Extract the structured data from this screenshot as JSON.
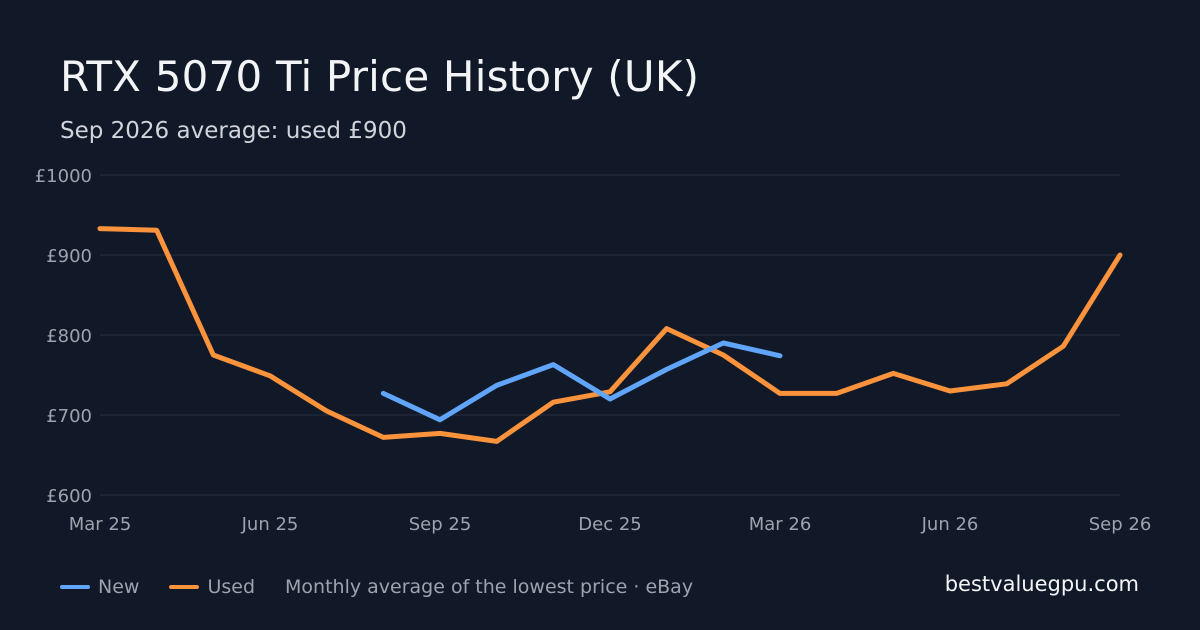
{
  "title": "RTX 5070 Ti Price History (UK)",
  "subtitle": "Sep 2026 average: used £900",
  "colors": {
    "background": "#111827",
    "grid": "#1f2937",
    "new": "#60a5fa",
    "used": "#fb923c"
  },
  "legend": {
    "new_label": "New",
    "used_label": "Used"
  },
  "footer_note": "Monthly average of the lowest price · eBay",
  "site": "bestvaluegpu.com",
  "chart_data": {
    "type": "line",
    "x": [
      "2025-03",
      "2025-04",
      "2025-05",
      "2025-06",
      "2025-07",
      "2025-08",
      "2025-09",
      "2025-10",
      "2025-11",
      "2025-12",
      "2026-01",
      "2026-02",
      "2026-03",
      "2026-04",
      "2026-05",
      "2026-06",
      "2026-07",
      "2026-08",
      "2026-09"
    ],
    "x_tick_labels": [
      "Mar 25",
      "Jun 25",
      "Sep 25",
      "Dec 25",
      "Mar 26",
      "Jun 26",
      "Sep 26"
    ],
    "y_tick_labels": [
      "£600",
      "£700",
      "£800",
      "£900",
      "£1000"
    ],
    "ylim": [
      600,
      1000
    ],
    "grid": true,
    "legend_position": "bottom-left",
    "series": [
      {
        "name": "New",
        "color": "#60a5fa",
        "values": [
          null,
          null,
          null,
          null,
          null,
          727,
          694,
          737,
          763,
          720,
          757,
          790,
          774,
          null,
          null,
          null,
          null,
          null,
          null
        ]
      },
      {
        "name": "Used",
        "color": "#fb923c",
        "values": [
          933,
          931,
          775,
          749,
          705,
          672,
          677,
          667,
          716,
          729,
          808,
          775,
          727,
          727,
          752,
          730,
          739,
          786,
          900
        ]
      }
    ]
  }
}
